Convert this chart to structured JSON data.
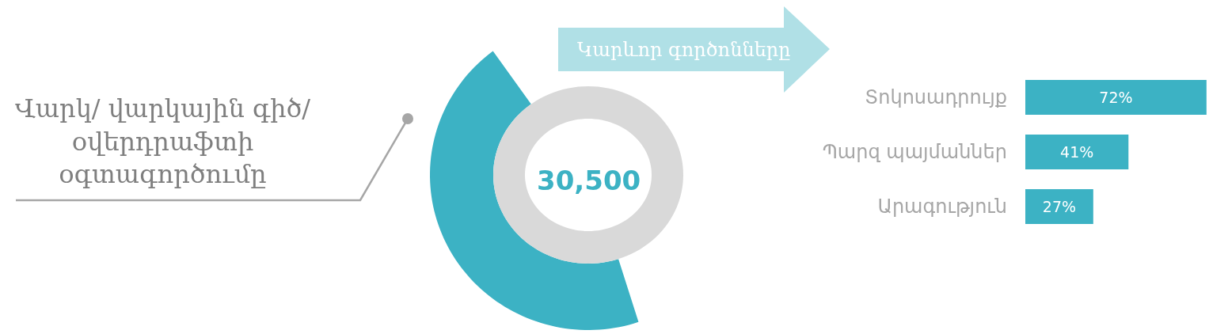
{
  "chart_data": [
    {
      "type": "other",
      "annotations": [
        "Վարկ/ վարկային գիծ/ օվերդրաֆտի օգտագործումը",
        "30,500"
      ]
    },
    {
      "type": "bar",
      "title": "Կարևոր գործոնները",
      "orientation": "horizontal",
      "categories": [
        "Տոկոսադրույք",
        "Պարզ պայմաններ",
        "Արագություն"
      ],
      "values": [
        72,
        41,
        27
      ],
      "color": "#3cb2c4",
      "value_labels": [
        "72%",
        "41%",
        "27%"
      ],
      "xlim": [
        0,
        73
      ],
      "tick_labels": "y"
    }
  ]
}
